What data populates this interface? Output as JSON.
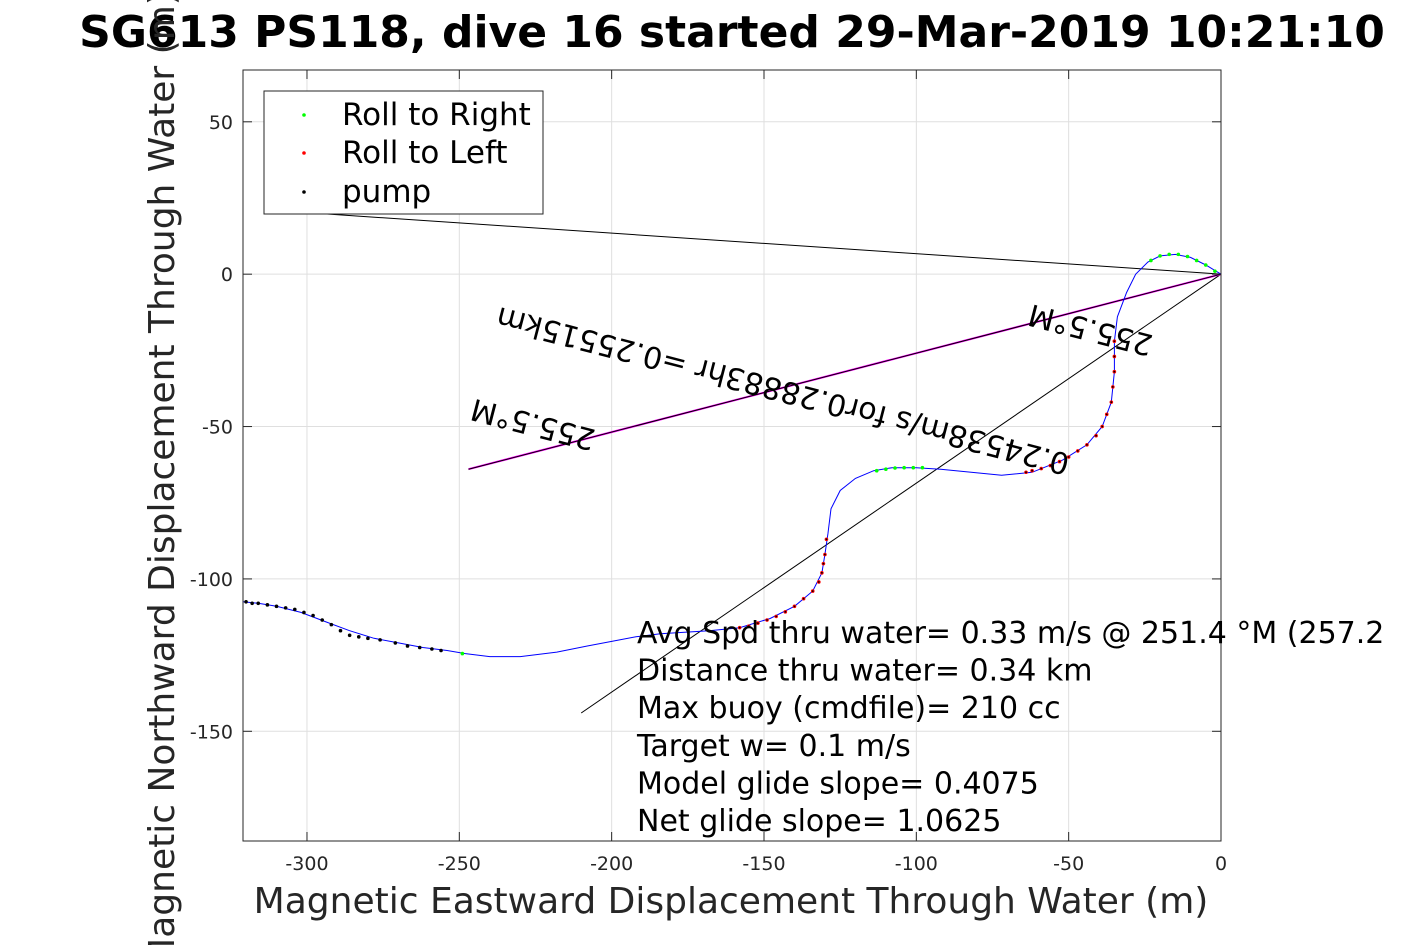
{
  "chart_data": {
    "type": "scatter",
    "title": "SG613 PS118, dive 16 started 29-Mar-2019 10:21:10",
    "xlabel": "Magnetic Eastward Displacement Through Water (m)",
    "ylabel": "Magnetic Northward Displacement Through Water (m)",
    "xlim": [
      -321,
      0
    ],
    "ylim": [
      -186,
      67
    ],
    "xticks": [
      -300,
      -250,
      -200,
      -150,
      -100,
      -50,
      0
    ],
    "yticks": [
      50,
      0,
      -50,
      -100,
      -150
    ],
    "grid": true,
    "legend_location": "top-left",
    "legend": [
      {
        "label": "Roll to Right",
        "color": "#00ff00"
      },
      {
        "label": "Roll to Left",
        "color": "#ff0000"
      },
      {
        "label": "pump",
        "color": "#000000"
      }
    ],
    "track": {
      "color": "#0000ff",
      "points": [
        [
          0,
          0
        ],
        [
          -5,
          3
        ],
        [
          -10,
          5.5
        ],
        [
          -15,
          6.5
        ],
        [
          -20,
          6
        ],
        [
          -24,
          4
        ],
        [
          -28,
          0
        ],
        [
          -31,
          -6
        ],
        [
          -34,
          -14
        ],
        [
          -35,
          -22
        ],
        [
          -35,
          -32
        ],
        [
          -36,
          -42
        ],
        [
          -39,
          -50
        ],
        [
          -44,
          -56
        ],
        [
          -52,
          -61
        ],
        [
          -62,
          -65
        ],
        [
          -72,
          -66
        ],
        [
          -82,
          -65
        ],
        [
          -92,
          -64
        ],
        [
          -100,
          -63.5
        ],
        [
          -108,
          -63.5
        ],
        [
          -114,
          -64.5
        ],
        [
          -120,
          -67
        ],
        [
          -125,
          -71
        ],
        [
          -128,
          -77
        ],
        [
          -129,
          -85
        ],
        [
          -130,
          -92
        ],
        [
          -131,
          -98
        ],
        [
          -134,
          -104
        ],
        [
          -140,
          -109
        ],
        [
          -148,
          -113
        ],
        [
          -158,
          -116
        ],
        [
          -168,
          -117
        ],
        [
          -176,
          -117.5
        ],
        [
          -184,
          -118
        ],
        [
          -192,
          -119
        ],
        [
          -200,
          -120.5
        ],
        [
          -208,
          -122
        ],
        [
          -218,
          -124
        ],
        [
          -230,
          -125.5
        ],
        [
          -240,
          -125.5
        ],
        [
          -248,
          -124.5
        ],
        [
          -254,
          -123.5
        ],
        [
          -262,
          -122.5
        ],
        [
          -270,
          -121
        ],
        [
          -278,
          -119.5
        ],
        [
          -286,
          -117
        ],
        [
          -294,
          -114
        ],
        [
          -302,
          -111
        ],
        [
          -310,
          -109
        ],
        [
          -316,
          -108
        ],
        [
          -321,
          -107.5
        ]
      ]
    },
    "roll_right_points": [
      [
        -2,
        1
      ],
      [
        -5,
        3
      ],
      [
        -8,
        4.5
      ],
      [
        -11,
        5.8
      ],
      [
        -14,
        6.5
      ],
      [
        -17,
        6.5
      ],
      [
        -20,
        6
      ],
      [
        -23,
        4.5
      ],
      [
        -98,
        -63.5
      ],
      [
        -101,
        -63.5
      ],
      [
        -104,
        -63.5
      ],
      [
        -107,
        -63.6
      ],
      [
        -110,
        -64
      ],
      [
        -113,
        -64.5
      ],
      [
        -249,
        -124.5
      ]
    ],
    "roll_left_points": [
      [
        -35,
        -22
      ],
      [
        -35,
        -27
      ],
      [
        -35,
        -32
      ],
      [
        -35.5,
        -37
      ],
      [
        -36,
        -42
      ],
      [
        -37.5,
        -46
      ],
      [
        -39,
        -50
      ],
      [
        -41,
        -53
      ],
      [
        -44,
        -56
      ],
      [
        -47,
        -58
      ],
      [
        -50,
        -60
      ],
      [
        -53,
        -61.5
      ],
      [
        -56,
        -62.8
      ],
      [
        -59,
        -63.8
      ],
      [
        -62,
        -64.5
      ],
      [
        -64,
        -65
      ],
      [
        -129.5,
        -87
      ],
      [
        -130,
        -92
      ],
      [
        -130.5,
        -95
      ],
      [
        -131,
        -98
      ],
      [
        -132,
        -101
      ],
      [
        -134,
        -104
      ],
      [
        -137,
        -106.5
      ],
      [
        -140,
        -109
      ],
      [
        -143,
        -110.8
      ],
      [
        -146,
        -112.3
      ],
      [
        -149,
        -113.5
      ],
      [
        -152,
        -114.5
      ],
      [
        -155,
        -115.5
      ],
      [
        -158,
        -116
      ]
    ],
    "pump_points": [
      [
        -256,
        -123.5
      ],
      [
        -259,
        -123
      ],
      [
        -263,
        -122.5
      ],
      [
        -267,
        -122
      ],
      [
        -271,
        -121
      ],
      [
        -276,
        -120
      ],
      [
        -280,
        -119.5
      ],
      [
        -283,
        -119
      ],
      [
        -286,
        -118.5
      ],
      [
        -289,
        -117
      ],
      [
        -292,
        -115
      ],
      [
        -295,
        -113.5
      ],
      [
        -298,
        -112
      ],
      [
        -301,
        -111
      ],
      [
        -304,
        -110
      ],
      [
        -307,
        -109.5
      ],
      [
        -310,
        -109
      ],
      [
        -313,
        -108.5
      ],
      [
        -316,
        -108
      ],
      [
        -318,
        -108
      ],
      [
        -320,
        -107.5
      ]
    ],
    "lines": [
      {
        "name": "to-legend",
        "from": [
          0,
          0
        ],
        "to": [
          -312,
          21
        ],
        "color": "#000000"
      },
      {
        "name": "diagonal",
        "from": [
          0,
          0
        ],
        "to": [
          -210,
          -144
        ],
        "color": "#000000"
      },
      {
        "name": "current-vector",
        "from": [
          0,
          0
        ],
        "to": [
          -247,
          -64
        ],
        "color": "#ff00ff"
      },
      {
        "name": "current-vector-black",
        "from": [
          0,
          0
        ],
        "to": [
          -247,
          -64
        ],
        "color": "#000000"
      }
    ],
    "annotations": {
      "rotated_labels": [
        {
          "text": "255.5°M",
          "at": [
            -225,
            -46
          ],
          "angle": 194.5
        },
        {
          "text": "0.24538m/s for0.28883hr =0.25515km",
          "at": [
            -143,
            -35
          ],
          "angle": 194.5
        },
        {
          "text": "255.5°M",
          "at": [
            -42,
            -15
          ],
          "angle": 194.5
        }
      ],
      "info_text": [
        "Avg Spd thru water=  0.33 m/s @ 251.4 °M (257.2",
        "Distance thru water=  0.34 km",
        "Max buoy (cmdfile)= 210 cc",
        "Target w= 0.1 m/s",
        "Model glide slope= 0.4075",
        "Net glide slope= 1.0625"
      ]
    }
  }
}
